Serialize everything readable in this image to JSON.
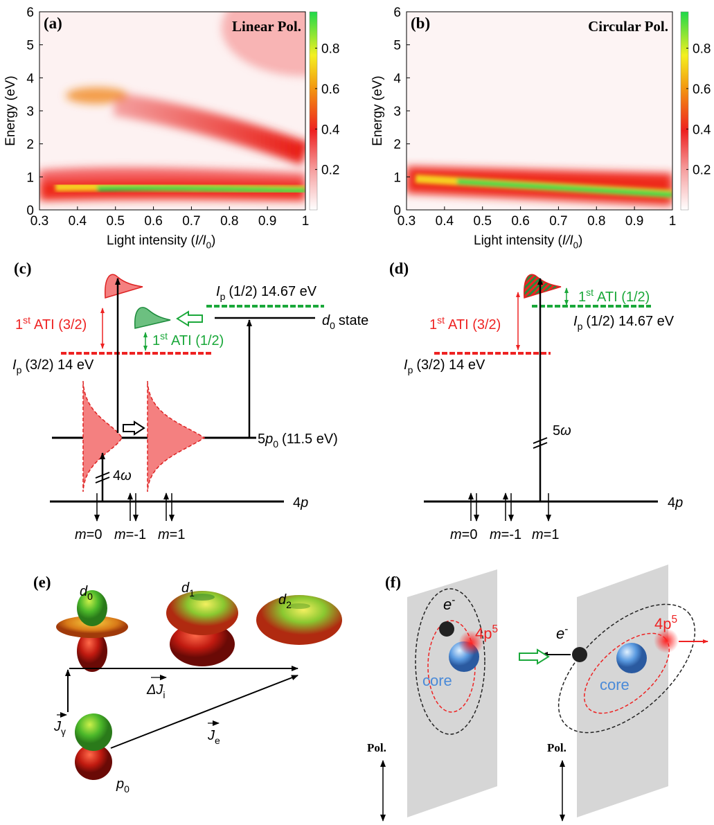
{
  "panels": {
    "a": {
      "label": "(a)",
      "title": "Linear Pol.",
      "ylabel": "Energy (eV)",
      "xlabel": [
        "Light intensity (",
        "I/I",
        "0",
        ")"
      ],
      "xlim": [
        0.3,
        1
      ],
      "ylim": [
        0,
        6
      ],
      "xticks": [
        0.3,
        0.4,
        0.5,
        0.6,
        0.7,
        0.8,
        0.9,
        1
      ],
      "yticks": [
        0,
        1,
        2,
        3,
        4,
        5,
        6
      ],
      "colorbar": {
        "lim": [
          0,
          0.98
        ],
        "ticks": [
          0.2,
          0.4,
          0.6,
          0.8
        ]
      }
    },
    "b": {
      "label": "(b)",
      "title": "Circular Pol.",
      "ylabel": "Energy (eV)",
      "xlabel": [
        "Light intensity (",
        "I/I",
        "0",
        ")"
      ],
      "xlim": [
        0.3,
        1
      ],
      "ylim": [
        0,
        6
      ],
      "xticks": [
        0.3,
        0.4,
        0.5,
        0.6,
        0.7,
        0.8,
        0.9,
        1
      ],
      "yticks": [
        0,
        1,
        2,
        3,
        4,
        5,
        6
      ],
      "colorbar": {
        "lim": [
          0,
          0.98
        ],
        "ticks": [
          0.2,
          0.4,
          0.6,
          0.8
        ]
      }
    },
    "c": {
      "label": "(c)",
      "ati_32": [
        "1",
        "st",
        "ATI (3/2)"
      ],
      "ati_12": [
        "1",
        "st",
        "ATI (1/2)"
      ],
      "ip_12": [
        "I",
        "p",
        "(1/2) 14.67 eV"
      ],
      "ip_32": [
        "I",
        "p",
        "(3/2) 14 eV"
      ],
      "d0_state": [
        "d",
        "0",
        "state"
      ],
      "p5": [
        "5",
        "p",
        "0",
        "(11.5 eV)"
      ],
      "photon": [
        "4",
        "ω"
      ],
      "ground": [
        "4",
        "p"
      ],
      "m": [
        [
          "m",
          "=0"
        ],
        [
          "m",
          "=-1"
        ],
        [
          "m",
          "=1"
        ]
      ]
    },
    "d": {
      "label": "(d)",
      "ati_32": [
        "1",
        "st",
        "ATI (3/2)"
      ],
      "ati_12": [
        "1",
        "st",
        "ATI (1/2)"
      ],
      "ip_12": [
        "I",
        "p",
        "(1/2) 14.67 eV"
      ],
      "ip_32": [
        "I",
        "p",
        "(3/2) 14 eV"
      ],
      "photon": [
        "5",
        "ω"
      ],
      "ground": [
        "4",
        "p"
      ],
      "m": [
        [
          "m",
          "=0"
        ],
        [
          "m",
          "=-1"
        ],
        [
          "m",
          "=1"
        ]
      ]
    },
    "e": {
      "label": "(e)",
      "d0": [
        "d",
        "0"
      ],
      "d1": [
        "d",
        "1"
      ],
      "d2": [
        "d",
        "2"
      ],
      "p0": [
        "p",
        "0"
      ],
      "dJ": [
        "ΔJ",
        "i"
      ],
      "Jg": [
        "J",
        "γ"
      ],
      "Je": [
        "J",
        "e"
      ]
    },
    "f": {
      "label": "(f)",
      "electron": [
        "e",
        "-"
      ],
      "hole": [
        "4p",
        "5"
      ],
      "core": "core",
      "pol": "Pol."
    }
  }
}
